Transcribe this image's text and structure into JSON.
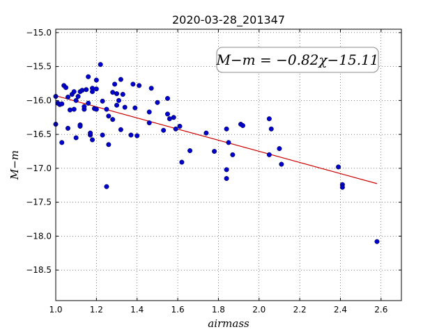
{
  "chart_data": {
    "type": "scatter",
    "title": "2020-03-28_201347",
    "xlabel": "airmass",
    "ylabel": "M−m",
    "xlim": [
      1.0,
      2.7
    ],
    "ylim": [
      -18.95,
      -14.95
    ],
    "y_inverted": true,
    "grid": "dotted",
    "x_ticks": [
      1.0,
      1.2,
      1.4,
      1.6,
      1.8,
      2.0,
      2.2,
      2.4,
      2.6
    ],
    "x_tick_labels": [
      "1.0",
      "1.2",
      "1.4",
      "1.6",
      "1.8",
      "2.0",
      "2.2",
      "2.4",
      "2.6"
    ],
    "y_ticks": [
      -15.0,
      -15.5,
      -16.0,
      -16.5,
      -17.0,
      -17.5,
      -18.0,
      -18.5
    ],
    "y_tick_labels": [
      "−15.0",
      "−15.5",
      "−16.0",
      "−16.5",
      "−17.0",
      "−17.5",
      "−18.0",
      "−18.5"
    ],
    "annotation": "M−m = −0.82χ−15.11",
    "fit": {
      "slope": -0.82,
      "intercept": -15.11,
      "x_range": [
        1.0,
        2.58
      ],
      "color": "#cc0000"
    },
    "point_color": "#0000cc",
    "points": [
      [
        1.0,
        -15.94
      ],
      [
        1.01,
        -16.04
      ],
      [
        1.02,
        -16.06
      ],
      [
        1.03,
        -16.05
      ],
      [
        1.0,
        -16.35
      ],
      [
        1.03,
        -16.62
      ],
      [
        1.04,
        -15.78
      ],
      [
        1.05,
        -15.81
      ],
      [
        1.06,
        -15.95
      ],
      [
        1.06,
        -16.41
      ],
      [
        1.07,
        -16.14
      ],
      [
        1.08,
        -15.91
      ],
      [
        1.09,
        -15.87
      ],
      [
        1.09,
        -16.13
      ],
      [
        1.1,
        -16.0
      ],
      [
        1.1,
        -16.55
      ],
      [
        1.11,
        -15.94
      ],
      [
        1.12,
        -15.87
      ],
      [
        1.12,
        -16.36
      ],
      [
        1.12,
        -16.38
      ],
      [
        1.13,
        -15.85
      ],
      [
        1.14,
        -16.13
      ],
      [
        1.14,
        -16.09
      ],
      [
        1.15,
        -15.84
      ],
      [
        1.16,
        -16.04
      ],
      [
        1.16,
        -15.65
      ],
      [
        1.17,
        -16.51
      ],
      [
        1.17,
        -16.48
      ],
      [
        1.18,
        -15.82
      ],
      [
        1.18,
        -15.87
      ],
      [
        1.18,
        -16.58
      ],
      [
        1.19,
        -16.12
      ],
      [
        1.2,
        -15.7
      ],
      [
        1.2,
        -15.83
      ],
      [
        1.2,
        -16.13
      ],
      [
        1.22,
        -15.47
      ],
      [
        1.23,
        -16.01
      ],
      [
        1.23,
        -16.51
      ],
      [
        1.25,
        -16.13
      ],
      [
        1.25,
        -17.27
      ],
      [
        1.26,
        -16.23
      ],
      [
        1.26,
        -16.65
      ],
      [
        1.28,
        -15.88
      ],
      [
        1.28,
        -16.28
      ],
      [
        1.29,
        -15.76
      ],
      [
        1.3,
        -15.9
      ],
      [
        1.3,
        -16.07
      ],
      [
        1.31,
        -16.0
      ],
      [
        1.32,
        -15.69
      ],
      [
        1.32,
        -16.43
      ],
      [
        1.33,
        -15.91
      ],
      [
        1.34,
        -16.1
      ],
      [
        1.37,
        -16.51
      ],
      [
        1.38,
        -15.76
      ],
      [
        1.39,
        -16.11
      ],
      [
        1.4,
        -16.52
      ],
      [
        1.41,
        -15.78
      ],
      [
        1.46,
        -16.17
      ],
      [
        1.46,
        -16.33
      ],
      [
        1.47,
        -15.82
      ],
      [
        1.5,
        -16.03
      ],
      [
        1.53,
        -16.44
      ],
      [
        1.55,
        -15.97
      ],
      [
        1.55,
        -16.2
      ],
      [
        1.56,
        -16.27
      ],
      [
        1.58,
        -16.25
      ],
      [
        1.59,
        -16.42
      ],
      [
        1.61,
        -16.38
      ],
      [
        1.62,
        -16.91
      ],
      [
        1.66,
        -16.74
      ],
      [
        1.74,
        -16.48
      ],
      [
        1.78,
        -16.75
      ],
      [
        1.84,
        -16.42
      ],
      [
        1.84,
        -17.02
      ],
      [
        1.84,
        -17.15
      ],
      [
        1.85,
        -16.62
      ],
      [
        1.87,
        -16.8
      ],
      [
        1.91,
        -16.35
      ],
      [
        1.92,
        -16.37
      ],
      [
        2.05,
        -16.27
      ],
      [
        2.05,
        -16.8
      ],
      [
        2.06,
        -16.42
      ],
      [
        2.1,
        -16.71
      ],
      [
        2.11,
        -16.94
      ],
      [
        2.39,
        -16.98
      ],
      [
        2.41,
        -17.24
      ],
      [
        2.41,
        -17.28
      ],
      [
        2.58,
        -18.08
      ]
    ]
  }
}
